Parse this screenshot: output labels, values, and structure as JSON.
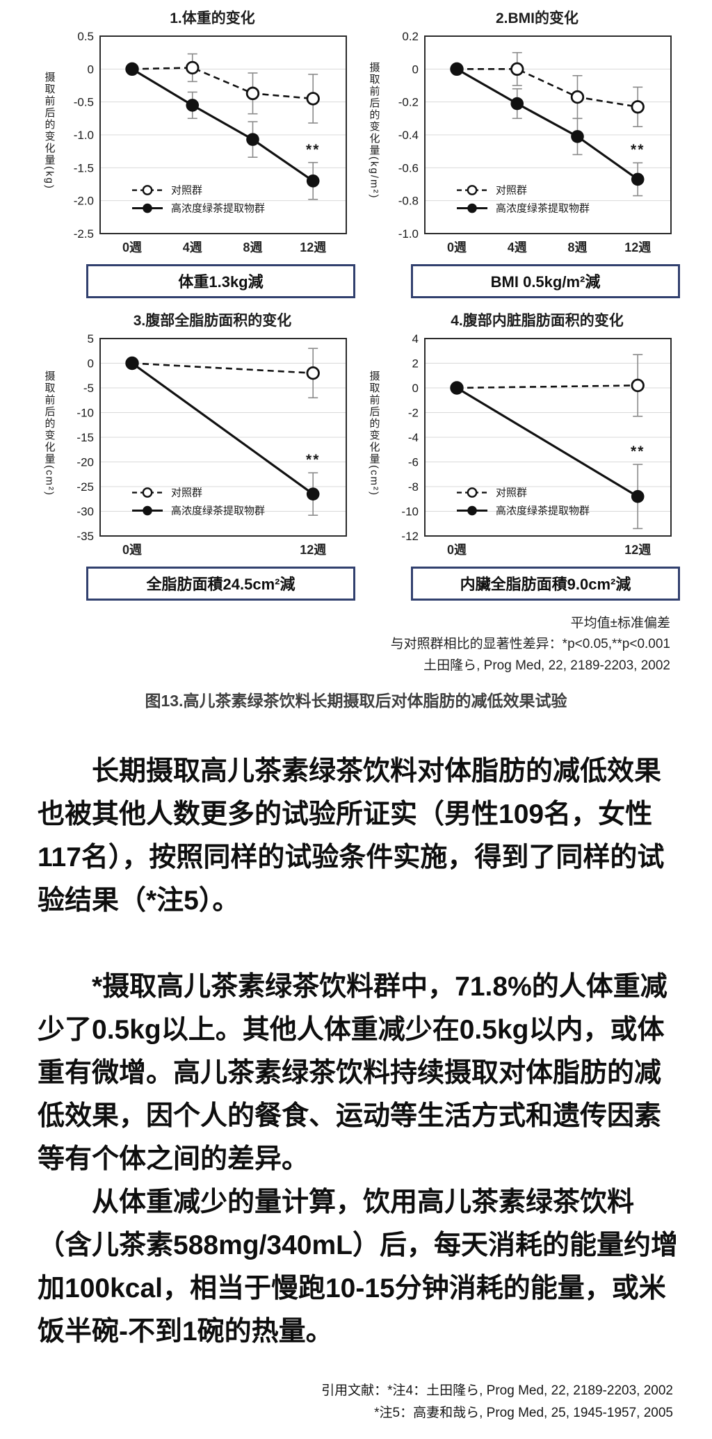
{
  "chart_data": [
    {
      "type": "line",
      "title": "1.体重的变化",
      "ylabel": "摄取前后的变化量",
      "ylabel_unit": "(kg)",
      "ylim": [
        -2.5,
        0.5
      ],
      "yticks": [
        0.5,
        0,
        -0.5,
        -1.0,
        -1.5,
        -2.0,
        -2.5
      ],
      "ytick_labels": [
        "0.5",
        "0",
        "-0.5",
        "-1.0",
        "-1.5",
        "-2.0",
        "-2.5"
      ],
      "categories": [
        "0週",
        "4週",
        "8週",
        "12週"
      ],
      "series": [
        {
          "name": "对照群",
          "style": "dashed-open",
          "values": [
            0,
            0.02,
            -0.37,
            -0.45
          ],
          "errors": [
            0,
            0.21,
            0.31,
            0.37
          ]
        },
        {
          "name": "高浓度绿茶提取物群",
          "style": "solid-filled",
          "values": [
            0,
            -0.55,
            -1.07,
            -1.7
          ],
          "errors": [
            0,
            0.2,
            0.27,
            0.28
          ]
        }
      ],
      "significance": "**",
      "summary": "体重1.3kg減"
    },
    {
      "type": "line",
      "title": "2.BMI的变化",
      "ylabel": "摄取前后的变化量",
      "ylabel_unit": "(kg/m²)",
      "ylim": [
        -1.0,
        0.2
      ],
      "yticks": [
        0.2,
        0,
        -0.2,
        -0.4,
        -0.6,
        -0.8,
        -1.0
      ],
      "ytick_labels": [
        "0.2",
        "0",
        "-0.2",
        "-0.4",
        "-0.6",
        "-0.8",
        "-1.0"
      ],
      "categories": [
        "0週",
        "4週",
        "8週",
        "12週"
      ],
      "series": [
        {
          "name": "对照群",
          "style": "dashed-open",
          "values": [
            0,
            0,
            -0.17,
            -0.23
          ],
          "errors": [
            0,
            0.1,
            0.13,
            0.12
          ]
        },
        {
          "name": "高浓度绿茶提取物群",
          "style": "solid-filled",
          "values": [
            0,
            -0.21,
            -0.41,
            -0.67
          ],
          "errors": [
            0,
            0.09,
            0.11,
            0.1
          ]
        }
      ],
      "significance": "**",
      "summary": "BMI 0.5kg/m²減"
    },
    {
      "type": "line",
      "title": "3.腹部全脂肪面积的变化",
      "ylabel": "摄取前后的变化量",
      "ylabel_unit": "(cm²)",
      "ylim": [
        -35,
        5
      ],
      "yticks": [
        5,
        0,
        -5,
        -10,
        -15,
        -20,
        -25,
        -30,
        -35
      ],
      "ytick_labels": [
        "5",
        "0",
        "-5",
        "-10",
        "-15",
        "-20",
        "-25",
        "-30",
        "-35"
      ],
      "categories": [
        "0週",
        "12週"
      ],
      "series": [
        {
          "name": "对照群",
          "style": "dashed-open",
          "values": [
            0,
            -2.0
          ],
          "errors": [
            0,
            5.0
          ]
        },
        {
          "name": "高浓度绿茶提取物群",
          "style": "solid-filled",
          "values": [
            0,
            -26.5
          ],
          "errors": [
            0,
            4.3
          ]
        }
      ],
      "significance": "**",
      "summary": "全脂肪面積24.5cm²減"
    },
    {
      "type": "line",
      "title": "4.腹部内脏脂肪面积的变化",
      "ylabel": "摄取前后的变化量",
      "ylabel_unit": "(cm²)",
      "ylim": [
        -12,
        4
      ],
      "yticks": [
        4,
        2,
        0,
        -2,
        -4,
        -6,
        -8,
        -10,
        -12
      ],
      "ytick_labels": [
        "4",
        "2",
        "0",
        "-2",
        "-4",
        "-6",
        "-8",
        "-10",
        "-12"
      ],
      "categories": [
        "0週",
        "12週"
      ],
      "series": [
        {
          "name": "对照群",
          "style": "dashed-open",
          "values": [
            0,
            0.2
          ],
          "errors": [
            0,
            2.5
          ]
        },
        {
          "name": "高浓度绿茶提取物群",
          "style": "solid-filled",
          "values": [
            0,
            -8.8
          ],
          "errors": [
            0,
            2.6
          ]
        }
      ],
      "significance": "**",
      "summary": "内臟全脂肪面積9.0cm²減"
    }
  ],
  "footnotes": [
    "平均值±标准偏差",
    "与对照群相比的显著性差异：*p<0.05,**p<0.001",
    "土田隆ら, Prog Med, 22, 2189-2203, 2002"
  ],
  "caption": "图13.高儿茶素绿茶饮料长期摄取后对体脂肪的减低效果试验",
  "paragraphs": [
    "长期摄取高儿茶素绿茶饮料对体脂肪的减低效果也被其他人数更多的试验所证实（男性109名，女性117名），按照同样的试验条件实施，得到了同样的试验结果（*注5）。",
    "*摄取高儿茶素绿茶饮料群中，71.8%的人体重减少了0.5kg以上。其他人体重减少在0.5kg以内，或体重有微增。高儿茶素绿茶饮料持续摄取对体脂肪的减低效果，因个人的餐食、运动等生活方式和遗传因素等有个体之间的差异。",
    "从体重减少的量计算，饮用高儿茶素绿茶饮料（含儿茶素588mg/340mL）后，每天消耗的能量约增加100kcal，相当于慢跑10-15分钟消耗的能量，或米饭半碗-不到1碗的热量。"
  ],
  "citations": [
    "引用文献：*注4：土田隆ら, Prog Med, 22, 2189-2203, 2002",
    "*注5：高妻和哉ら, Prog Med, 25, 1945-1957, 2005"
  ],
  "colors": {
    "frame": "#2b2b2b",
    "grid": "#d9d9d9",
    "series": "#111111",
    "error_bar": "#8a8a8a",
    "box_border": "#31406e",
    "text": "#111111"
  }
}
